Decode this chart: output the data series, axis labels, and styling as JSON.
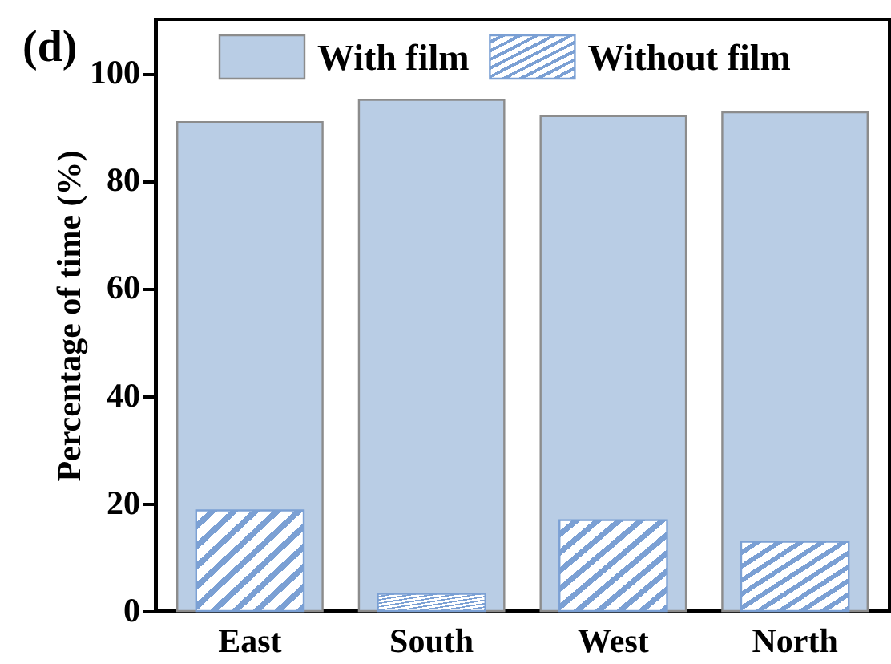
{
  "chart_data": {
    "type": "bar",
    "title": "(d)",
    "ylabel": "Percentage of time (%)",
    "categories": [
      "East",
      "South",
      "West",
      "North"
    ],
    "series": [
      {
        "name": "With film",
        "color": "#b9cde5",
        "values": [
          90.9,
          95.0,
          92.0,
          92.7
        ]
      },
      {
        "name": "Without film",
        "color": "#7ba0d4",
        "values": [
          18.7,
          3.2,
          16.9,
          12.9
        ]
      }
    ],
    "ylim": [
      0,
      110
    ],
    "yticks": [
      0,
      20,
      40,
      60,
      80,
      100
    ],
    "legend": "top",
    "grid": false
  }
}
